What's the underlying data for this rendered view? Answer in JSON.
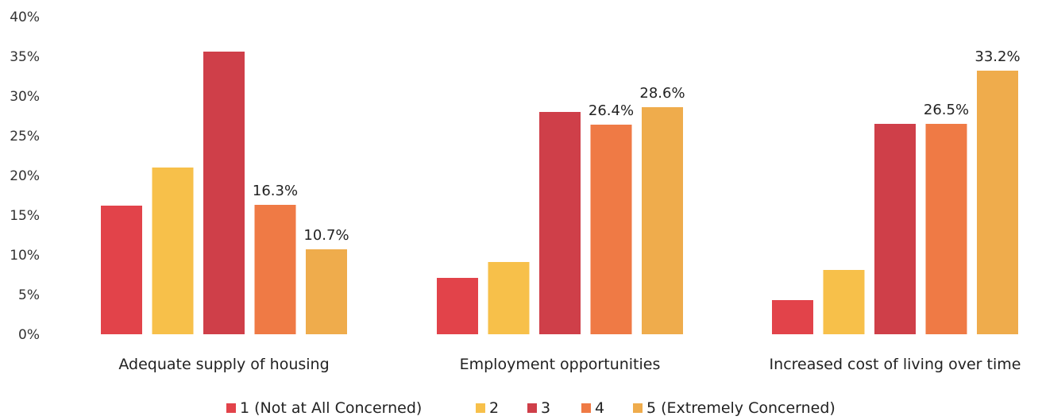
{
  "chart_data": {
    "type": "bar",
    "title": "",
    "xlabel": "",
    "ylabel": "",
    "ylim": [
      0,
      40
    ],
    "yticks": [
      "0%",
      "5%",
      "10%",
      "15%",
      "20%",
      "25%",
      "30%",
      "35%",
      "40%"
    ],
    "grid": false,
    "legend_position": "bottom",
    "categories": [
      "Adequate supply of housing",
      "Employment opportunities",
      "Increased cost of living over time"
    ],
    "series": [
      {
        "name": "1 (Not at All Concerned)",
        "color": "#e2434a",
        "values": [
          16.2,
          7.1,
          4.3
        ],
        "labels": [
          "",
          "",
          ""
        ]
      },
      {
        "name": "2",
        "color": "#f7c04a",
        "values": [
          21.0,
          9.1,
          8.1
        ],
        "labels": [
          "",
          "",
          ""
        ]
      },
      {
        "name": "3",
        "color": "#cf3f49",
        "values": [
          35.6,
          28.0,
          26.5
        ],
        "labels": [
          "",
          "",
          ""
        ]
      },
      {
        "name": "4",
        "color": "#ef7a45",
        "values": [
          16.3,
          26.4,
          26.5
        ],
        "labels": [
          "16.3%",
          "26.4%",
          "26.5%"
        ]
      },
      {
        "name": "5 (Extremely Concerned)",
        "color": "#efac4c",
        "values": [
          10.7,
          28.6,
          33.2
        ],
        "labels": [
          "10.7%",
          "28.6%",
          "33.2%"
        ]
      }
    ]
  }
}
